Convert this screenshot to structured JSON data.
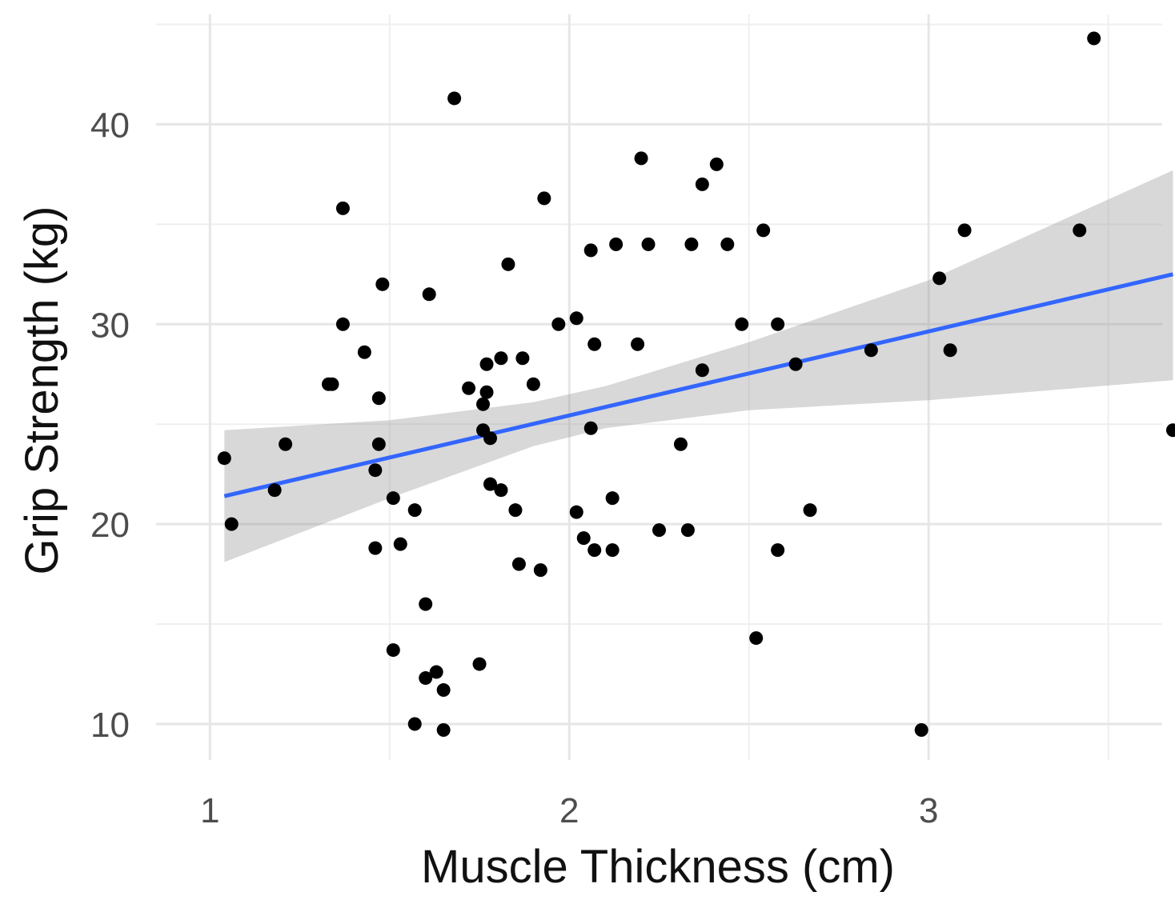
{
  "chart_data": {
    "type": "scatter",
    "title": "",
    "xlabel": "Muscle Thickness (cm)",
    "ylabel": "Grip Strength (kg)",
    "xlim": [
      0.85,
      3.65
    ],
    "ylim": [
      8.2,
      45.5
    ],
    "xticks": [
      1,
      2,
      3
    ],
    "xtick_labels": [
      "1",
      "2",
      "3"
    ],
    "yticks": [
      10,
      20,
      30,
      40
    ],
    "ytick_labels": [
      "10",
      "20",
      "30",
      "40"
    ],
    "grid": true,
    "colors": {
      "points": "#000000",
      "fit_line": "#3366ff",
      "confidence_band": "#999999",
      "grid": "#e6e6e6"
    },
    "points": [
      {
        "x": 1.04,
        "y": 23.3
      },
      {
        "x": 1.06,
        "y": 20.0
      },
      {
        "x": 1.18,
        "y": 21.7
      },
      {
        "x": 1.21,
        "y": 24.0
      },
      {
        "x": 1.33,
        "y": 27.0
      },
      {
        "x": 1.34,
        "y": 27.0
      },
      {
        "x": 1.37,
        "y": 35.8
      },
      {
        "x": 1.37,
        "y": 30.0
      },
      {
        "x": 1.43,
        "y": 28.6
      },
      {
        "x": 1.46,
        "y": 22.7
      },
      {
        "x": 1.46,
        "y": 18.8
      },
      {
        "x": 1.47,
        "y": 24.0
      },
      {
        "x": 1.47,
        "y": 26.3
      },
      {
        "x": 1.48,
        "y": 32.0
      },
      {
        "x": 1.51,
        "y": 21.3
      },
      {
        "x": 1.51,
        "y": 13.7
      },
      {
        "x": 1.53,
        "y": 19.0
      },
      {
        "x": 1.57,
        "y": 20.7
      },
      {
        "x": 1.57,
        "y": 10.0
      },
      {
        "x": 1.6,
        "y": 16.0
      },
      {
        "x": 1.6,
        "y": 12.3
      },
      {
        "x": 1.61,
        "y": 31.5
      },
      {
        "x": 1.63,
        "y": 12.6
      },
      {
        "x": 1.65,
        "y": 11.7
      },
      {
        "x": 1.65,
        "y": 9.7
      },
      {
        "x": 1.68,
        "y": 41.3
      },
      {
        "x": 1.72,
        "y": 26.8
      },
      {
        "x": 1.75,
        "y": 13.0
      },
      {
        "x": 1.76,
        "y": 26.0
      },
      {
        "x": 1.76,
        "y": 24.7
      },
      {
        "x": 1.77,
        "y": 28.0
      },
      {
        "x": 1.77,
        "y": 26.6
      },
      {
        "x": 1.78,
        "y": 24.3
      },
      {
        "x": 1.78,
        "y": 22.0
      },
      {
        "x": 1.81,
        "y": 21.7
      },
      {
        "x": 1.81,
        "y": 28.3
      },
      {
        "x": 1.83,
        "y": 33.0
      },
      {
        "x": 1.85,
        "y": 20.7
      },
      {
        "x": 1.86,
        "y": 18.0
      },
      {
        "x": 1.87,
        "y": 28.3
      },
      {
        "x": 1.9,
        "y": 27.0
      },
      {
        "x": 1.92,
        "y": 17.7
      },
      {
        "x": 1.93,
        "y": 36.3
      },
      {
        "x": 1.97,
        "y": 30.0
      },
      {
        "x": 2.02,
        "y": 30.3
      },
      {
        "x": 2.02,
        "y": 20.6
      },
      {
        "x": 2.04,
        "y": 19.3
      },
      {
        "x": 2.06,
        "y": 33.7
      },
      {
        "x": 2.06,
        "y": 24.8
      },
      {
        "x": 2.07,
        "y": 29.0
      },
      {
        "x": 2.07,
        "y": 18.7
      },
      {
        "x": 2.12,
        "y": 21.3
      },
      {
        "x": 2.12,
        "y": 18.7
      },
      {
        "x": 2.13,
        "y": 34.0
      },
      {
        "x": 2.19,
        "y": 29.0
      },
      {
        "x": 2.2,
        "y": 38.3
      },
      {
        "x": 2.22,
        "y": 34.0
      },
      {
        "x": 2.25,
        "y": 19.7
      },
      {
        "x": 2.31,
        "y": 24.0
      },
      {
        "x": 2.33,
        "y": 19.7
      },
      {
        "x": 2.34,
        "y": 34.0
      },
      {
        "x": 2.37,
        "y": 37.0
      },
      {
        "x": 2.37,
        "y": 27.7
      },
      {
        "x": 2.41,
        "y": 38.0
      },
      {
        "x": 2.44,
        "y": 34.0
      },
      {
        "x": 2.48,
        "y": 30.0
      },
      {
        "x": 2.52,
        "y": 14.3
      },
      {
        "x": 2.54,
        "y": 34.7
      },
      {
        "x": 2.58,
        "y": 30.0
      },
      {
        "x": 2.58,
        "y": 18.7
      },
      {
        "x": 2.63,
        "y": 28.0
      },
      {
        "x": 2.67,
        "y": 20.7
      },
      {
        "x": 2.84,
        "y": 28.7
      },
      {
        "x": 2.98,
        "y": 9.7
      },
      {
        "x": 3.03,
        "y": 32.3
      },
      {
        "x": 3.06,
        "y": 28.7
      },
      {
        "x": 3.1,
        "y": 34.7
      },
      {
        "x": 3.42,
        "y": 34.7
      },
      {
        "x": 3.46,
        "y": 44.3
      },
      {
        "x": 3.68,
        "y": 24.7
      }
    ],
    "fit_line": {
      "method": "linear regression",
      "x": [
        1.04,
        3.68
      ],
      "y": [
        21.4,
        32.5
      ]
    },
    "confidence_band": {
      "x": [
        1.04,
        1.5,
        1.9,
        2.1,
        2.5,
        3.0,
        3.68
      ],
      "lower": [
        18.1,
        21.3,
        23.9,
        24.8,
        25.7,
        26.2,
        27.2
      ],
      "upper": [
        24.7,
        25.2,
        26.1,
        26.9,
        29.1,
        32.2,
        37.7
      ]
    }
  }
}
